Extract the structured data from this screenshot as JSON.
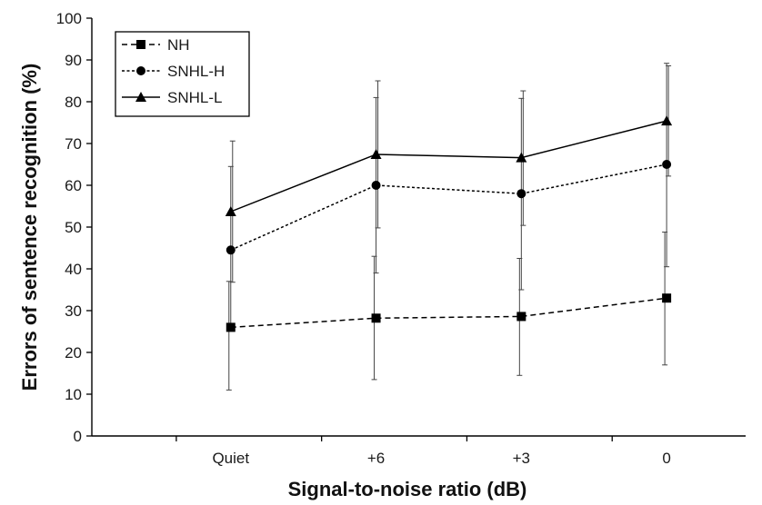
{
  "chart_data": {
    "type": "line",
    "title": "",
    "xlabel": "Signal-to-noise ratio (dB)",
    "ylabel": "Errors of sentence recognition (%)",
    "categories": [
      "Quiet",
      "+6",
      "+3",
      "0"
    ],
    "ylim": [
      0,
      100
    ],
    "yticks": [
      0,
      10,
      20,
      30,
      40,
      50,
      60,
      70,
      80,
      90,
      100
    ],
    "grid": false,
    "legend_position": "top-left",
    "series": [
      {
        "name": "NH",
        "marker": "square",
        "line_style": "dashed",
        "color": "#000000",
        "values": [
          26,
          28.2,
          28.6,
          33
        ],
        "error_low": [
          11,
          13.5,
          14.5,
          17
        ],
        "error_high": [
          37,
          43,
          42.5,
          48.8
        ]
      },
      {
        "name": "SNHL-H",
        "marker": "circle",
        "line_style": "dotted",
        "color": "#000000",
        "values": [
          44.5,
          60,
          58,
          65
        ],
        "error_low": [
          25.5,
          39,
          35,
          40.5
        ],
        "error_high": [
          64.5,
          81,
          80.8,
          89.2
        ]
      },
      {
        "name": "SNHL-L",
        "marker": "triangle",
        "line_style": "solid",
        "color": "#000000",
        "values": [
          53.7,
          67.4,
          66.6,
          75.4
        ],
        "error_low": [
          36.8,
          49.8,
          50.4,
          62.2
        ],
        "error_high": [
          70.6,
          85,
          82.6,
          88.6
        ]
      }
    ]
  }
}
